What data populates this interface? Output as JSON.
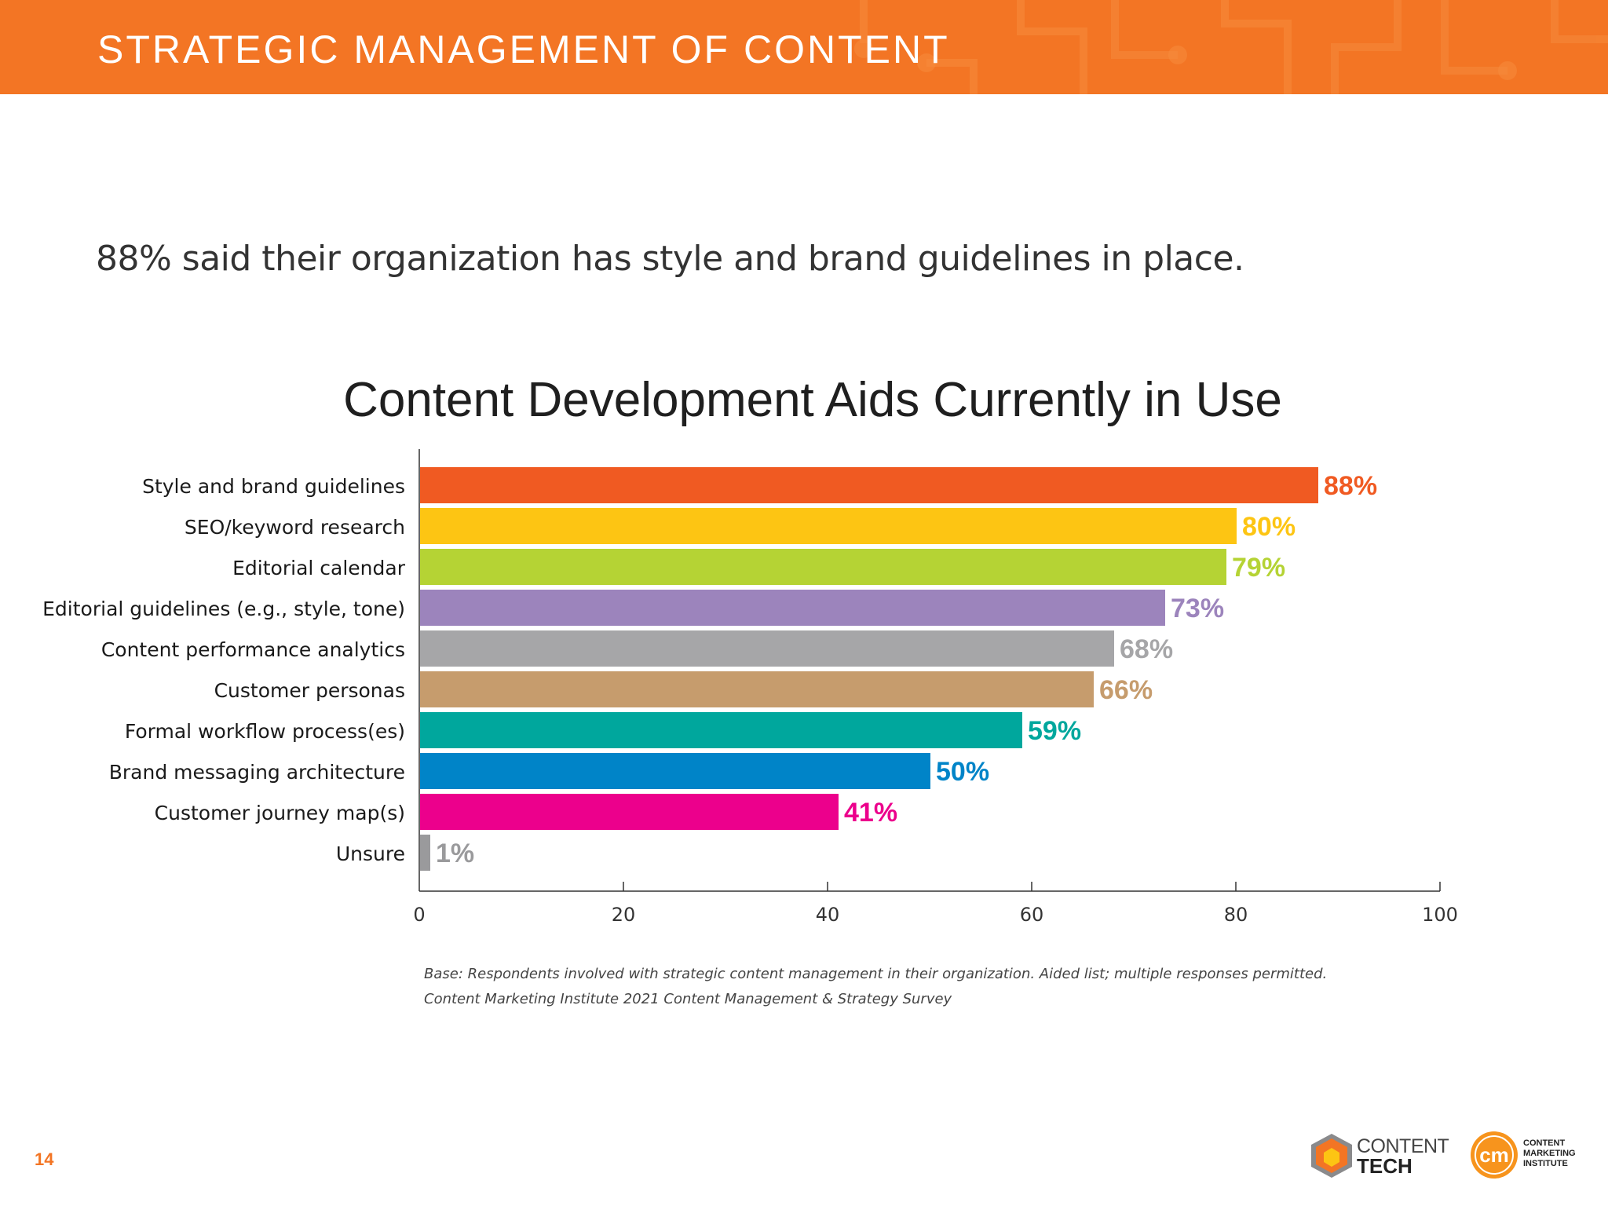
{
  "header": {
    "title": "STRATEGIC MANAGEMENT OF CONTENT"
  },
  "subtitle": "88% said their organization has style and brand guidelines in place.",
  "chart_data": {
    "type": "bar",
    "orientation": "horizontal",
    "title": "Content Development Aids Currently in Use",
    "categories": [
      "Style and brand guidelines",
      "SEO/keyword research",
      "Editorial calendar",
      "Editorial guidelines (e.g., style, tone)",
      "Content performance analytics",
      "Customer personas",
      "Formal workflow process(es)",
      "Brand messaging architecture",
      "Customer journey map(s)",
      "Unsure"
    ],
    "values": [
      88,
      80,
      79,
      73,
      68,
      66,
      59,
      50,
      41,
      1
    ],
    "value_labels": [
      "88%",
      "80%",
      "79%",
      "73%",
      "68%",
      "66%",
      "59%",
      "50%",
      "41%",
      "1%"
    ],
    "colors": [
      "#f05a22",
      "#fdc513",
      "#b5d334",
      "#9c84bc",
      "#a6a6a8",
      "#c69c6d",
      "#00a79d",
      "#0084c8",
      "#ec008c",
      "#9a9a9c"
    ],
    "xlim": [
      0,
      100
    ],
    "xticks": [
      "0",
      "20",
      "40",
      "60",
      "80",
      "100"
    ],
    "xtick_values": [
      0,
      20,
      40,
      60,
      80,
      100
    ],
    "grid": false,
    "legend": "none"
  },
  "notes": [
    "Base: Respondents involved with strategic content management in their organization. Aided list; multiple responses permitted.",
    "Content Marketing Institute 2021 Content Management & Strategy Survey"
  ],
  "footer": {
    "page_number": "14",
    "content_tech_line1": "CONTENT",
    "content_tech_line2": "TECH",
    "cmi_mark": "cm",
    "cmi_lines": [
      "CONTENT",
      "MARKETING",
      "INSTITUTE"
    ]
  },
  "colors": {
    "brand_orange": "#f37524"
  }
}
